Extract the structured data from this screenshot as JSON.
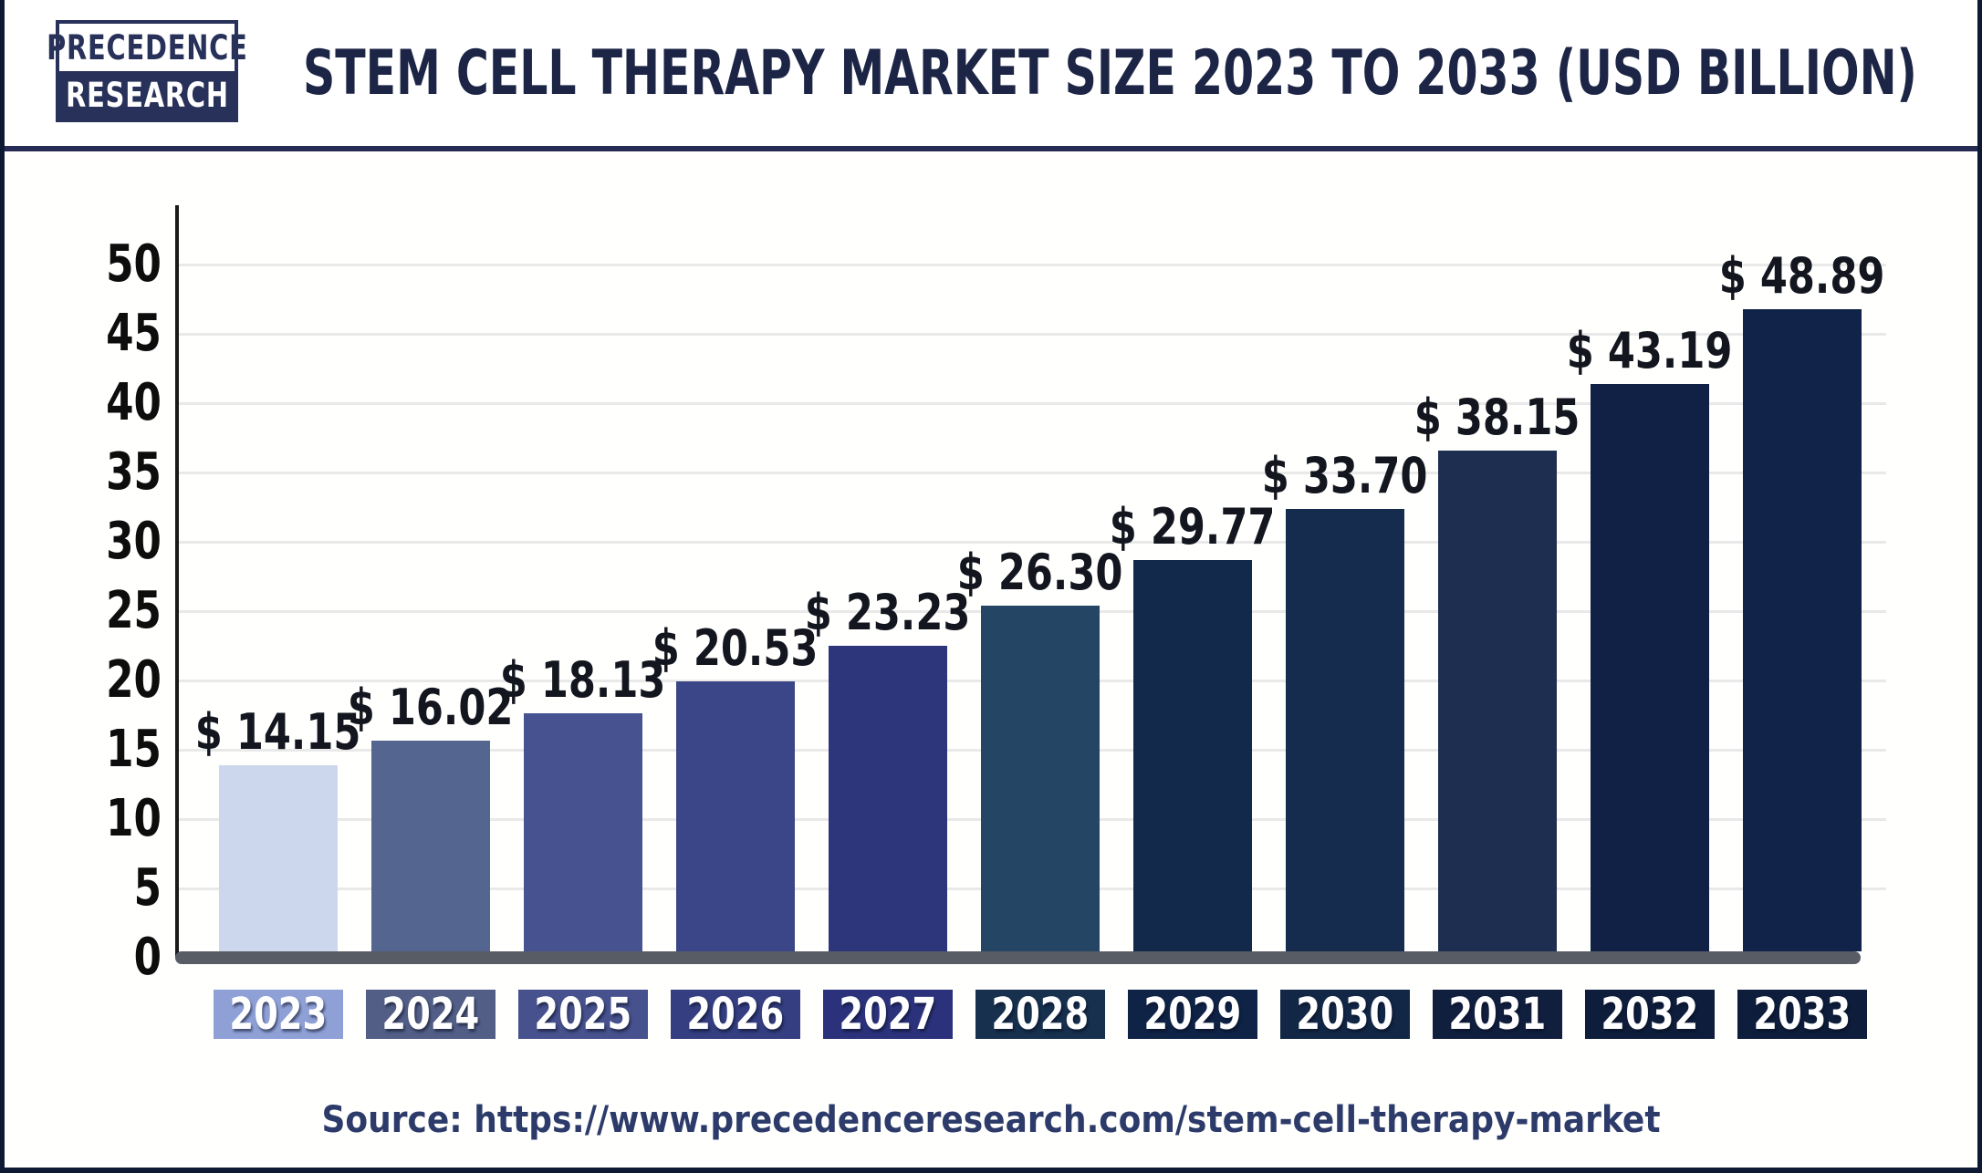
{
  "header": {
    "logo": {
      "line1": "PRECEDENCE",
      "line2": "RESEARCH"
    },
    "title": "STEM CELL THERAPY MARKET SIZE 2023 TO 2033 (USD BILLION)"
  },
  "chart_data": {
    "type": "bar",
    "title": "Stem Cell Therapy Market Size 2023 to 2033 (USD Billion)",
    "categories": [
      "2023",
      "2024",
      "2025",
      "2026",
      "2027",
      "2028",
      "2029",
      "2030",
      "2031",
      "2032",
      "2033"
    ],
    "values": [
      14.15,
      16.02,
      18.13,
      20.53,
      23.23,
      26.3,
      29.77,
      33.7,
      38.15,
      43.19,
      48.89
    ],
    "value_labels": [
      "$ 14.15",
      "$ 16.02",
      "$ 18.13",
      "$ 20.53",
      "$ 23.23",
      "$ 26.30",
      "$ 29.77",
      "$ 33.70",
      "$ 38.15",
      "$ 43.19",
      "$ 48.89"
    ],
    "xlabel": "",
    "ylabel": "",
    "ylim": [
      0,
      50
    ],
    "yticks": [
      0,
      5,
      10,
      15,
      20,
      25,
      30,
      35,
      40,
      45,
      50
    ],
    "grid": true,
    "legend": "none",
    "bar_colors": [
      "#ccd6ed",
      "#54658f",
      "#475390",
      "#3a4687",
      "#2d357b",
      "#254564",
      "#13294b",
      "#152c4e",
      "#1d2e51",
      "#102145",
      "#112348"
    ],
    "tick_box_colors": [
      "#8fa0d6",
      "#525e86",
      "#46518d",
      "#343e80",
      "#2b327b",
      "#16304e",
      "#0f2346",
      "#122746",
      "#111f3f",
      "#0e1d3b",
      "#0e1d3c"
    ],
    "axis_color": "#1a1a1a",
    "baseline_color": "#575c65",
    "gridline_color": "#e9e9ea"
  },
  "footer": {
    "source": "Source: https://www.precedenceresearch.com/stem-cell-therapy-market"
  }
}
